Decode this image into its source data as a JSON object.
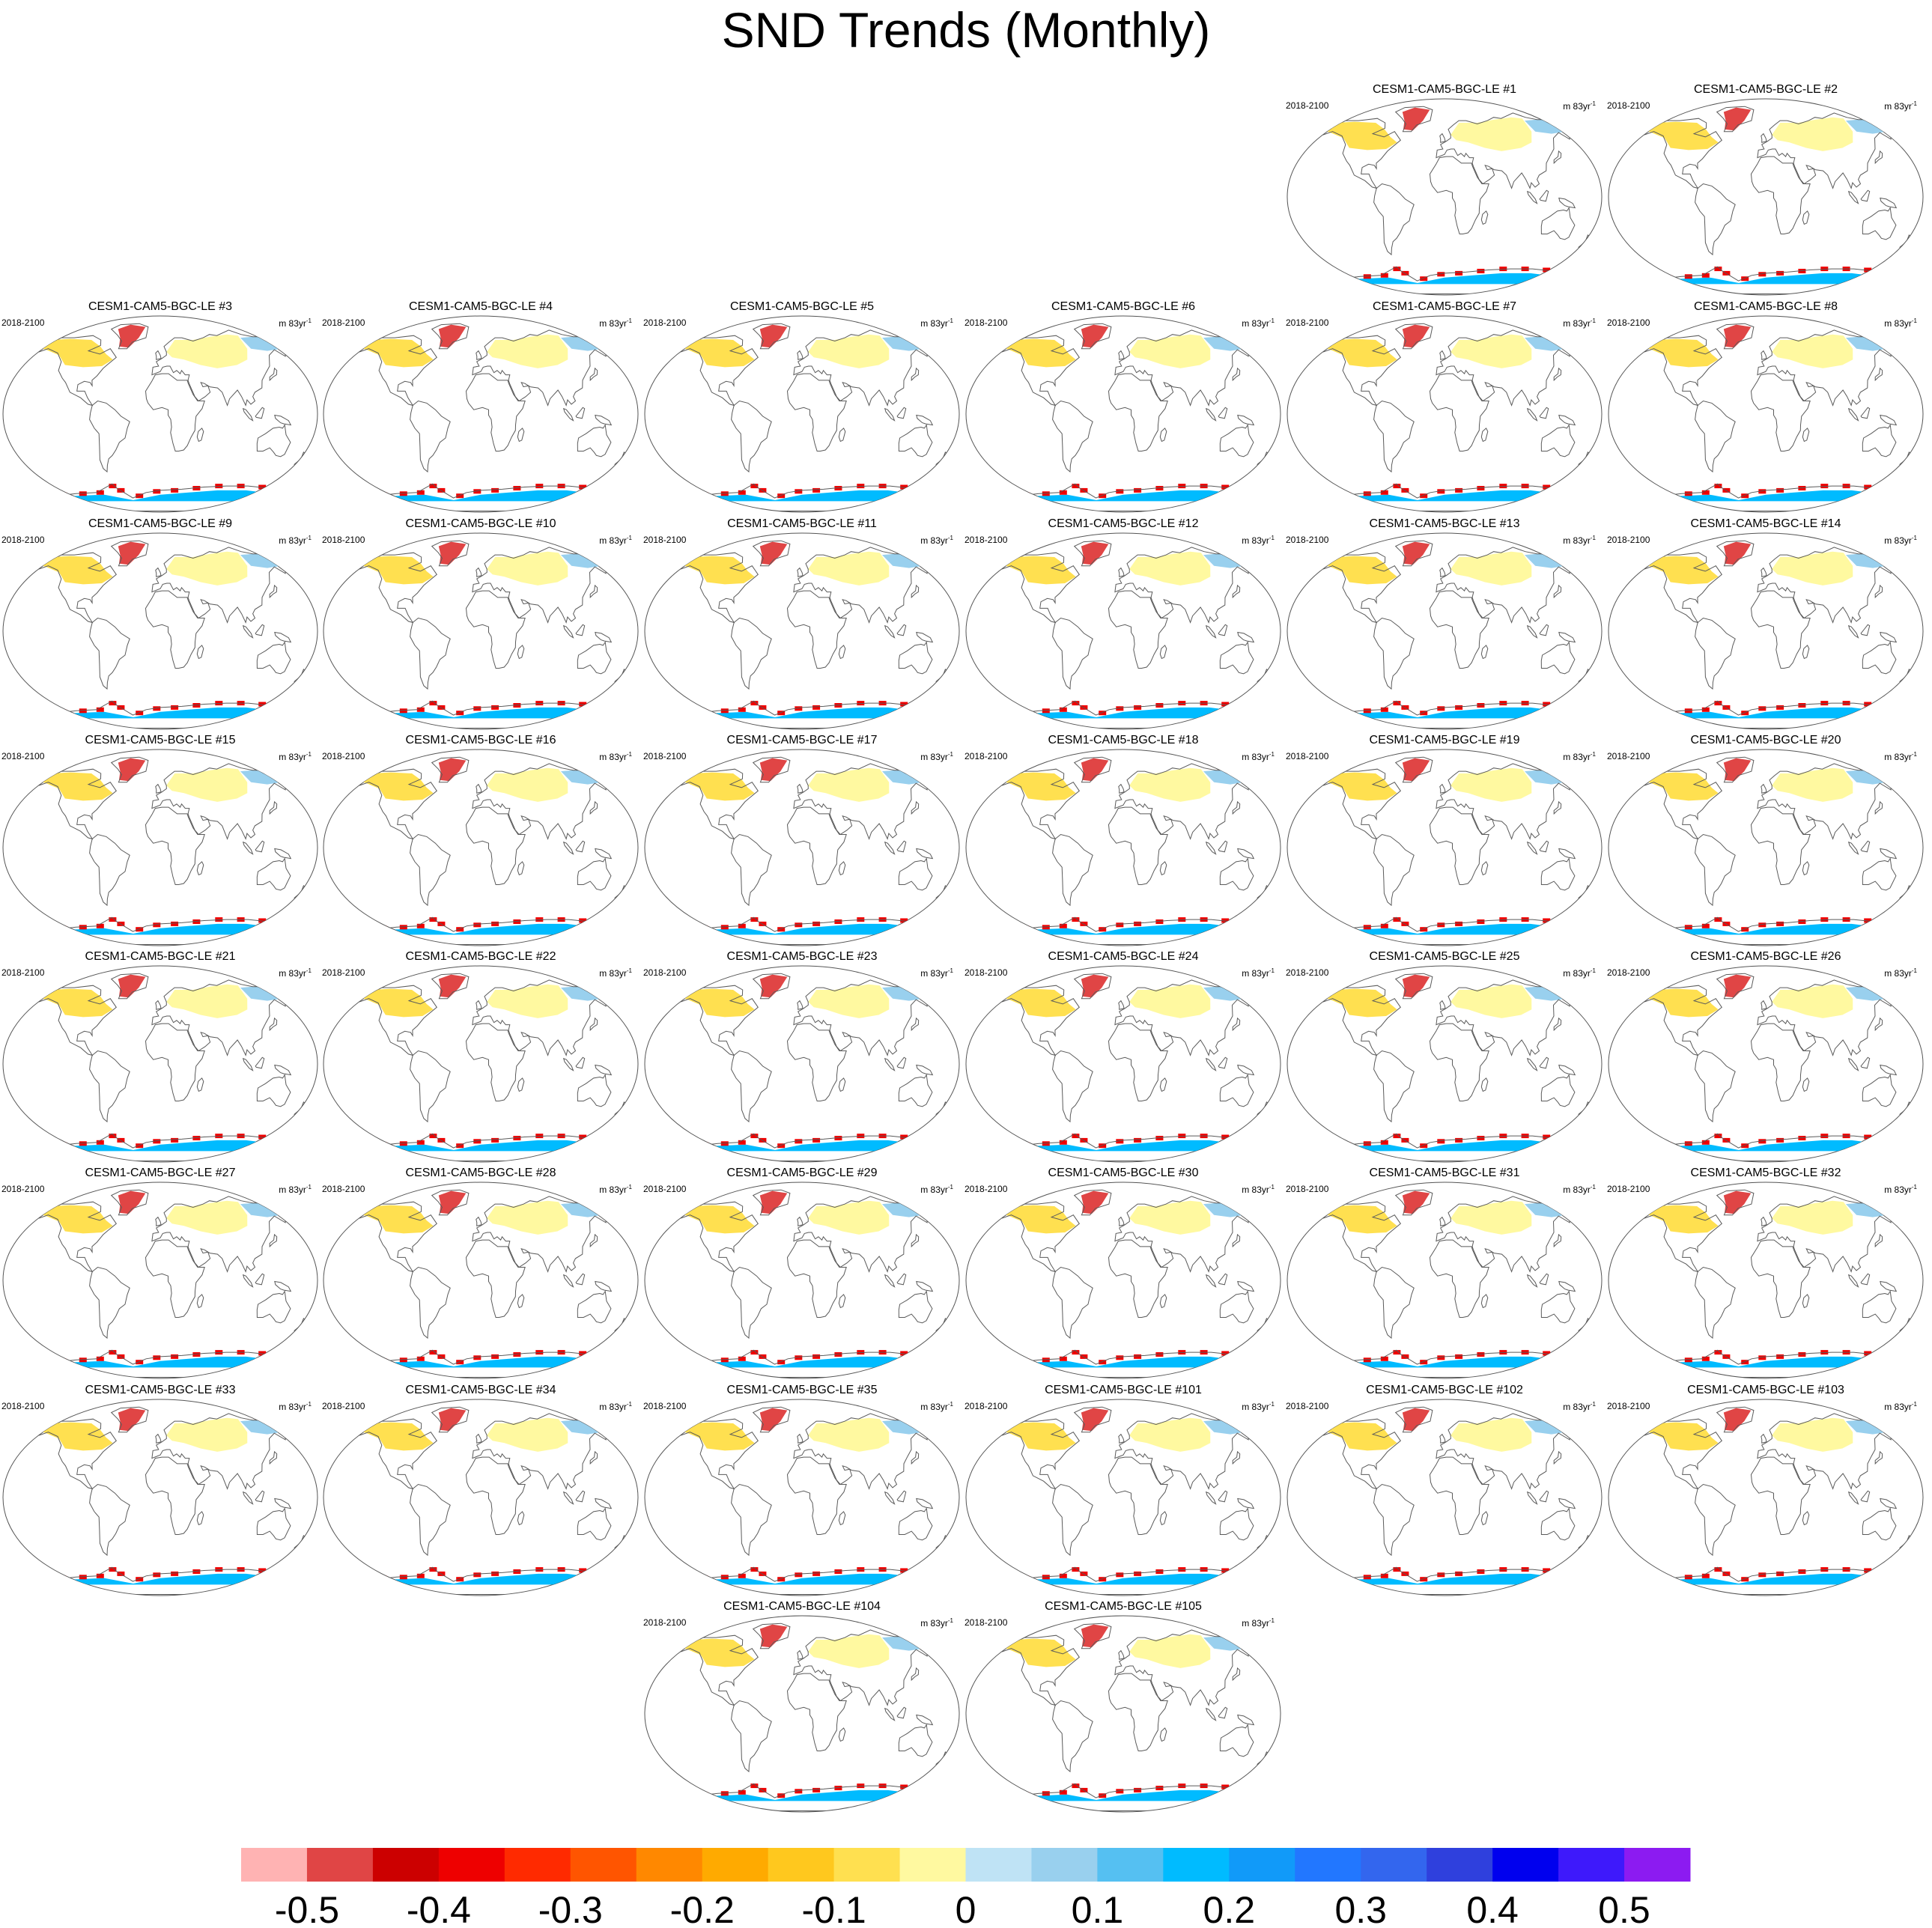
{
  "title": "SND Trends (Monthly)",
  "chart_data": {
    "type": "heatmap",
    "title": "SND Trends (Monthly)",
    "variable": "SND",
    "projection": "Robinson",
    "period_label": "2018-2100",
    "units_base": "m 83yr",
    "units_exponent": "-1",
    "panels": [
      {
        "title": "CESM1-CAM5-BGC-LE #1"
      },
      {
        "title": "CESM1-CAM5-BGC-LE #2"
      },
      {
        "title": "CESM1-CAM5-BGC-LE #3"
      },
      {
        "title": "CESM1-CAM5-BGC-LE #4"
      },
      {
        "title": "CESM1-CAM5-BGC-LE #5"
      },
      {
        "title": "CESM1-CAM5-BGC-LE #6"
      },
      {
        "title": "CESM1-CAM5-BGC-LE #7"
      },
      {
        "title": "CESM1-CAM5-BGC-LE #8"
      },
      {
        "title": "CESM1-CAM5-BGC-LE #9"
      },
      {
        "title": "CESM1-CAM5-BGC-LE #10"
      },
      {
        "title": "CESM1-CAM5-BGC-LE #11"
      },
      {
        "title": "CESM1-CAM5-BGC-LE #12"
      },
      {
        "title": "CESM1-CAM5-BGC-LE #13"
      },
      {
        "title": "CESM1-CAM5-BGC-LE #14"
      },
      {
        "title": "CESM1-CAM5-BGC-LE #15"
      },
      {
        "title": "CESM1-CAM5-BGC-LE #16"
      },
      {
        "title": "CESM1-CAM5-BGC-LE #17"
      },
      {
        "title": "CESM1-CAM5-BGC-LE #18"
      },
      {
        "title": "CESM1-CAM5-BGC-LE #19"
      },
      {
        "title": "CESM1-CAM5-BGC-LE #20"
      },
      {
        "title": "CESM1-CAM5-BGC-LE #21"
      },
      {
        "title": "CESM1-CAM5-BGC-LE #22"
      },
      {
        "title": "CESM1-CAM5-BGC-LE #23"
      },
      {
        "title": "CESM1-CAM5-BGC-LE #24"
      },
      {
        "title": "CESM1-CAM5-BGC-LE #25"
      },
      {
        "title": "CESM1-CAM5-BGC-LE #26"
      },
      {
        "title": "CESM1-CAM5-BGC-LE #27"
      },
      {
        "title": "CESM1-CAM5-BGC-LE #28"
      },
      {
        "title": "CESM1-CAM5-BGC-LE #29"
      },
      {
        "title": "CESM1-CAM5-BGC-LE #30"
      },
      {
        "title": "CESM1-CAM5-BGC-LE #31"
      },
      {
        "title": "CESM1-CAM5-BGC-LE #32"
      },
      {
        "title": "CESM1-CAM5-BGC-LE #33"
      },
      {
        "title": "CESM1-CAM5-BGC-LE #34"
      },
      {
        "title": "CESM1-CAM5-BGC-LE #35"
      },
      {
        "title": "CESM1-CAM5-BGC-LE #101"
      },
      {
        "title": "CESM1-CAM5-BGC-LE #102"
      },
      {
        "title": "CESM1-CAM5-BGC-LE #103"
      },
      {
        "title": "CESM1-CAM5-BGC-LE #104"
      },
      {
        "title": "CESM1-CAM5-BGC-LE #105"
      }
    ],
    "colorbar": {
      "colors": [
        "#ffb3b3",
        "#e04545",
        "#cc0000",
        "#ee0000",
        "#ff2a00",
        "#ff5500",
        "#ff8800",
        "#ffaa00",
        "#ffc81e",
        "#ffe050",
        "#fff9a0",
        "#bfe3f5",
        "#99d0ee",
        "#55c0f2",
        "#00bbff",
        "#119af9",
        "#2277ff",
        "#3366ee",
        "#2f40dd",
        "#0000ee",
        "#3e19fb",
        "#8c1bf1"
      ],
      "tick_labels": [
        "-0.5",
        "-0.4",
        "-0.3",
        "-0.2",
        "-0.1",
        "0",
        "0.1",
        "0.2",
        "0.3",
        "0.4",
        "0.5"
      ],
      "tick_values": [
        -0.5,
        -0.4,
        -0.3,
        -0.2,
        -0.1,
        0,
        0.1,
        0.2,
        0.3,
        0.4,
        0.5
      ],
      "range": [
        -0.55,
        0.55
      ]
    },
    "regional_pattern": [
      {
        "region": "North America (boreal)",
        "trend": "-0.1"
      },
      {
        "region": "Eurasia (interior)",
        "trend": "-0.05"
      },
      {
        "region": "East Siberia",
        "trend": "0.05"
      },
      {
        "region": "Greenland / Arctic margins",
        "trend": "-0.5"
      },
      {
        "region": "Antarctic coast",
        "trend": "-0.4"
      },
      {
        "region": "Antarctic interior",
        "trend": "0.2"
      }
    ]
  }
}
